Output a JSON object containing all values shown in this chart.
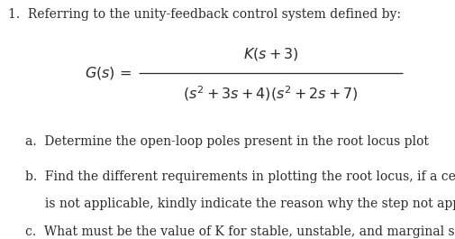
{
  "background_color": "#ffffff",
  "text_color": "#2a2a2a",
  "item_number": "1.",
  "intro_text": "  Referring to the unity-feedback control system defined by:",
  "sub_a_label": "a.",
  "sub_a_text": "  Determine the open-loop poles present in the root locus plot",
  "sub_b_label": "b.",
  "sub_b_text_line1": "  Find the different requirements in plotting the root locus, if a certain step",
  "sub_b_text_line2": "     is not applicable, kindly indicate the reason why the step not applicable.",
  "sub_c_label": "c.",
  "sub_c_text": "  What must be the value of K for stable, unstable, and marginal stability?",
  "font_size_main": 10.0,
  "font_size_formula": 11.5
}
